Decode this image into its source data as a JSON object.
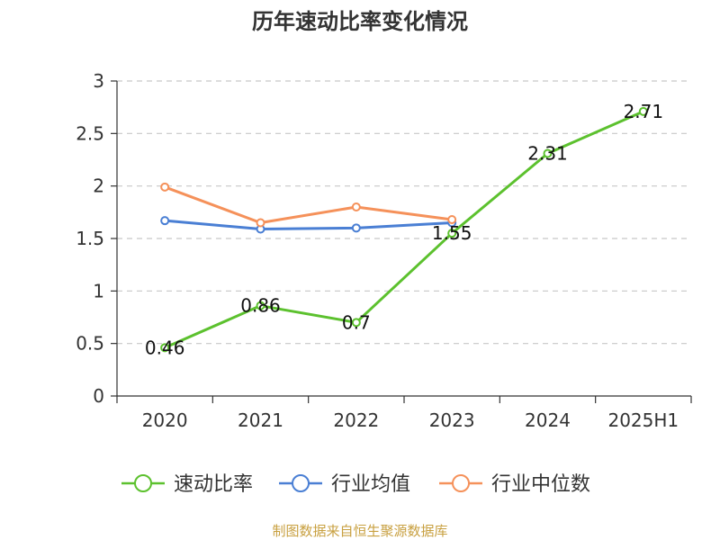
{
  "source_note": "制图数据来自恒生聚源数据库",
  "colors": {
    "speed_ratio": "#5cc12e",
    "industry_avg": "#4a7fd4",
    "industry_median": "#f5915a",
    "grid": "#c8c8c8",
    "axis": "#333333",
    "source": "#c8a040"
  },
  "chart_data": {
    "type": "line",
    "title": "历年速动比率变化情况",
    "xlabel": "",
    "ylabel": "",
    "categories": [
      "2020",
      "2021",
      "2022",
      "2023",
      "2024",
      "2025H1"
    ],
    "ylim": [
      0,
      3
    ],
    "yticks": [
      "0",
      "0.5",
      "1",
      "1.5",
      "2",
      "2.5",
      "3"
    ],
    "grid": true,
    "legend_position": "bottom",
    "series": [
      {
        "name": "速动比率",
        "color": "#5cc12e",
        "values": [
          0.46,
          0.86,
          0.7,
          1.55,
          2.31,
          2.71
        ],
        "labels": [
          "0.46",
          "0.86",
          "0.7",
          "1.55",
          "2.31",
          "2.71"
        ],
        "show_labels": true
      },
      {
        "name": "行业均值",
        "color": "#4a7fd4",
        "values": [
          1.67,
          1.59,
          1.6,
          1.65,
          null,
          null
        ],
        "show_labels": false
      },
      {
        "name": "行业中位数",
        "color": "#f5915a",
        "values": [
          1.99,
          1.65,
          1.8,
          1.68,
          null,
          null
        ],
        "show_labels": false
      }
    ]
  }
}
